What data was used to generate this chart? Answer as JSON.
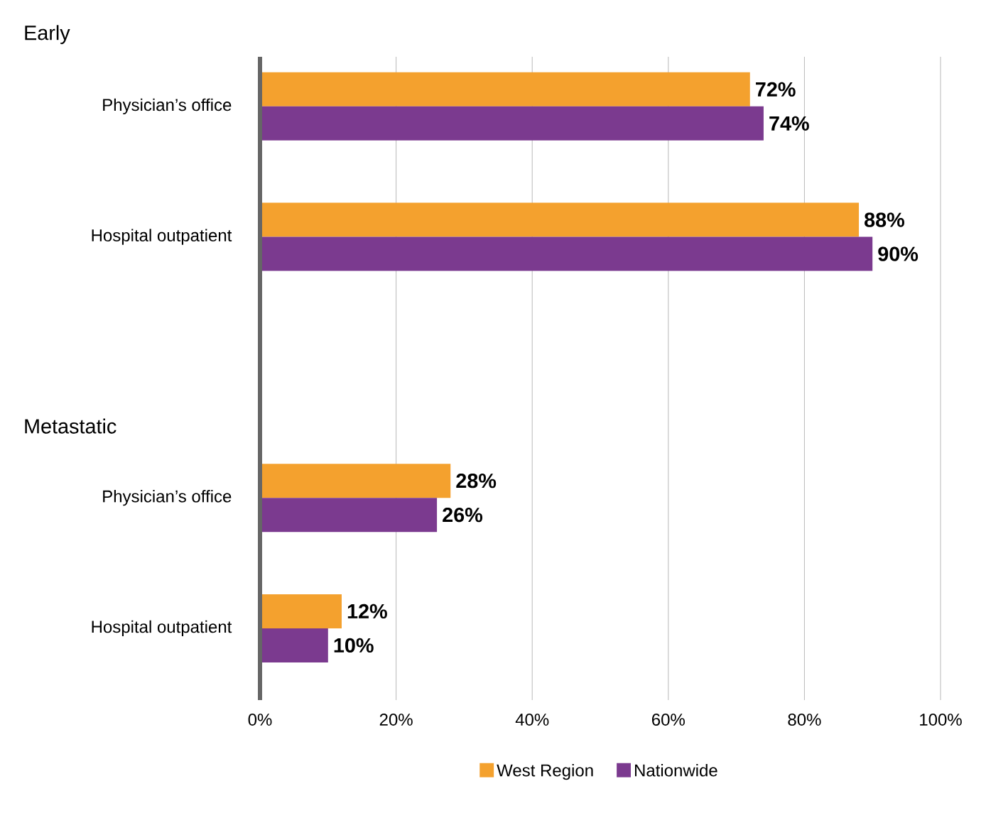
{
  "chart_data": {
    "type": "bar",
    "orientation": "horizontal",
    "categories": [
      "Physician’s office",
      "Hospital outpatient",
      null,
      "Physician’s office",
      "Hospital outpatient"
    ],
    "series": [
      {
        "name": "West Region",
        "color": "#f4a12e",
        "values": [
          72,
          88,
          null,
          28,
          12
        ],
        "value_labels": [
          "72%",
          "88%",
          null,
          "28%",
          "12%"
        ]
      },
      {
        "name": "Nationwide",
        "color": "#7b3a8f",
        "values": [
          74,
          90,
          null,
          26,
          10
        ],
        "value_labels": [
          "74%",
          "90%",
          null,
          "26%",
          "10%"
        ]
      }
    ],
    "annotations": [
      "Early",
      "Metastatic"
    ],
    "xlim": [
      0,
      100
    ],
    "xticks": [
      {
        "value": 0,
        "label": "0%"
      },
      {
        "value": 20,
        "label": "20%"
      },
      {
        "value": 40,
        "label": "40%"
      },
      {
        "value": 60,
        "label": "60%"
      },
      {
        "value": 80,
        "label": "80%"
      },
      {
        "value": 100,
        "label": "100%"
      }
    ],
    "grid": "x",
    "legend": "bottom"
  }
}
